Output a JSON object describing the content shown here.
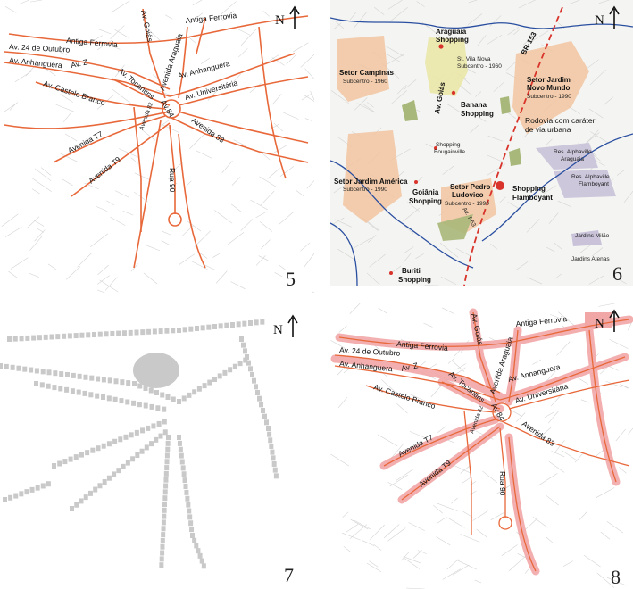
{
  "north_symbol": "N",
  "panels": {
    "p5": {
      "number": "5",
      "roads": [
        "Antiga Ferrovia",
        "Av. Goiás",
        "Av. 24 de Outubro",
        "Av. Z",
        "Av. Anhanguera",
        "Avenida Araguaia",
        "Av. Anhanguera",
        "Av. Castelo Branco",
        "Av. Tocantins",
        "Av. Universitária",
        "Av.84",
        "Avenida 82",
        "Avenida 83",
        "Avenida T7",
        "Avenida T9",
        "Rua 90"
      ]
    },
    "p6": {
      "number": "6",
      "labels": {
        "araguaia": "Araguaia",
        "araguaia2": "Shopping",
        "vila_nova": "St. Vila Nova",
        "vila_nova_sub": "Subcentro - 1960",
        "br153": "BR-153",
        "campinas": "Setor Campinas",
        "campinas_sub": "Subcentro - 1960",
        "av_goias": "Av. Goiás",
        "jardim_novo": "Setor Jardim",
        "jardim_novo2": "Novo Mundo",
        "jardim_novo_sub": "Subcentro - 1990",
        "banana": "Banana",
        "banana2": "Shopping",
        "rodovia": "Rodovia com caráter",
        "rodovia2": "de via urbana",
        "bougainville": "Shopping",
        "bougainville2": "Bougainville",
        "alph_arag": "Res. Alphaville",
        "alph_arag2": "Araguaia",
        "jd_america": "Setor Jardim América",
        "jd_america_sub": "Subcentro - 1990",
        "goiania_shop": "Goiânia",
        "goiania_shop2": "Shopping",
        "pedro": "Setor Pedro",
        "pedro2": "Ludovico",
        "pedro_sub": "Subcentro - 1990",
        "flamboyant": "Shopping",
        "flamboyant2": "Flamboyant",
        "alph_flam": "Res. Alphaville",
        "alph_flam2": "Flamboyant",
        "av_t63": "Av. T-63",
        "milao": "Jardins Milão",
        "atenas": "Jardins Atenas",
        "buriti": "Buriti",
        "buriti2": "Shopping"
      }
    },
    "p7": {
      "number": "7"
    },
    "p8": {
      "number": "8",
      "roads": [
        "Antiga Ferrovia",
        "Av. Goiás",
        "Av. 24 de Outubro",
        "Av. Z",
        "Av. Anhanguera",
        "Avenida Araguaia",
        "Av. Anhanguera",
        "Av. Castelo Branco",
        "Av. Tocantins",
        "Av. Universitária",
        "Av.84",
        "Avenida 82",
        "Avenida 83",
        "Avenida T7",
        "Avenida T9",
        "Rua 90"
      ]
    }
  },
  "colors": {
    "road": "#e8683a",
    "grid": "#d4d4d4",
    "block_gray": "#c9c9c9",
    "highlight_pink": "#f2a7a7",
    "orange_zone": "#f1c4a0",
    "yellow_zone": "#eae7a8",
    "green": "#a8b87a",
    "river": "#2a4fa0",
    "br153": "#d9342b",
    "purple": "#c9c2d9"
  }
}
